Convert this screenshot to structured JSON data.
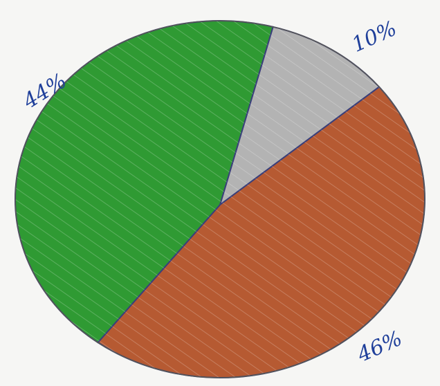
{
  "chart_data": {
    "type": "pie",
    "title": "",
    "categories": [
      "",
      "",
      ""
    ],
    "values": [
      44,
      10,
      46
    ],
    "labels": [
      "44%",
      "10%",
      "46%"
    ],
    "colors": [
      "#2f9a33",
      "#b3b3b3",
      "#b65a32"
    ],
    "outline_color": "#3a3f7a",
    "label_color": "#1f3f9a",
    "legend": "none"
  }
}
